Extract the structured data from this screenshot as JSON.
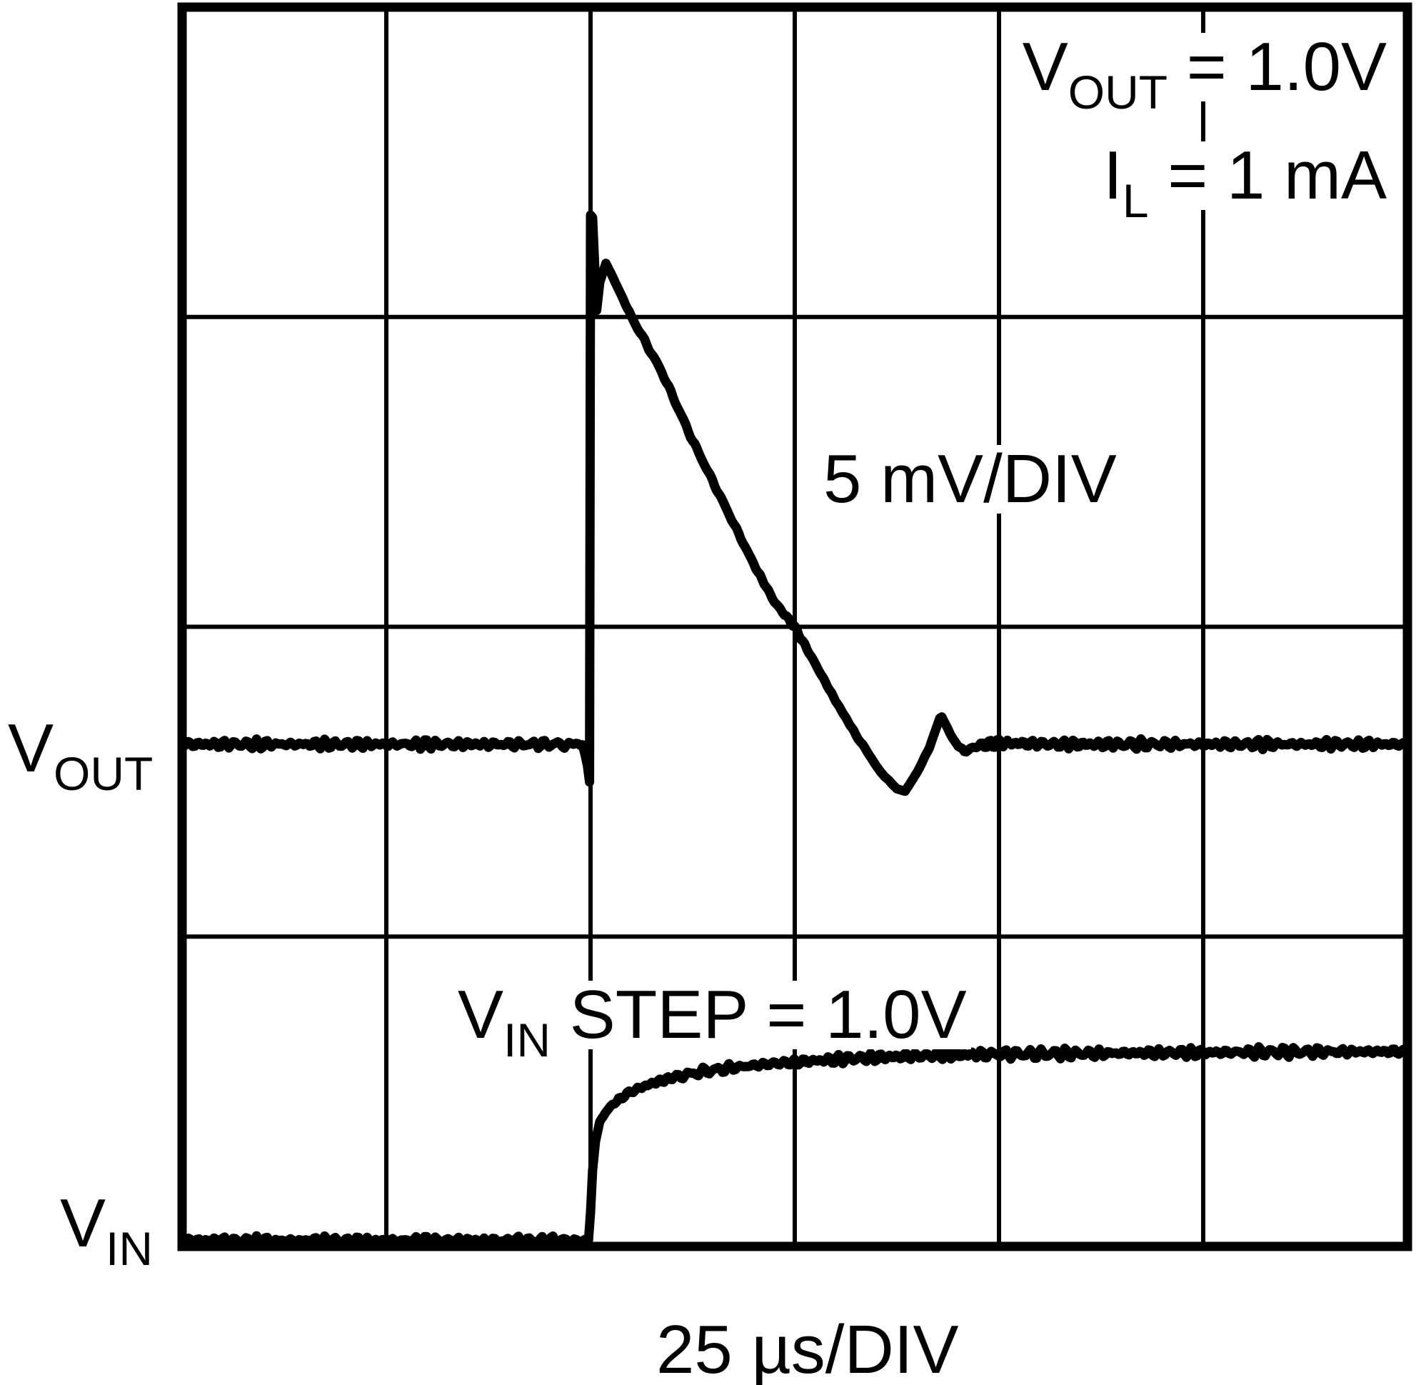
{
  "chart_data": {
    "type": "line",
    "title": "",
    "x_axis": {
      "label": "25 µs/DIV",
      "divisions": 6,
      "per_division": "25 µs",
      "tick_labels": []
    },
    "y_axis": {
      "divisions": 4,
      "vout_scale_per_division": "5 mV",
      "tick_labels": []
    },
    "grid": "on",
    "series": [
      {
        "name": "VOUT",
        "units": "mV",
        "div_per_unit": 0.2,
        "baseline_div": 2.379,
        "description": "Output voltage transient: flat baseline, sharp positive spike of ~8.5 mV at t = 2 div, linear recovery over ~1.5 div, small undershoot of ~-0.8 mV, then settles back to baseline",
        "anchors": [
          [
            0.0,
            0,
            0.09
          ],
          [
            0.5,
            0,
            0.09
          ],
          [
            1.0,
            0,
            0.09
          ],
          [
            1.5,
            0,
            0.09
          ],
          [
            1.85,
            0,
            0.09
          ],
          [
            1.96,
            0,
            0.05
          ],
          [
            1.985,
            -0.35,
            0
          ],
          [
            1.995,
            -0.61,
            0
          ],
          [
            2.0,
            8.54,
            0
          ],
          [
            2.01,
            8.5,
            0
          ],
          [
            2.03,
            7.0,
            0
          ],
          [
            2.045,
            7.45,
            0
          ],
          [
            2.075,
            7.76,
            0
          ],
          [
            2.1,
            7.6,
            0
          ],
          [
            2.2,
            6.9,
            0.03
          ],
          [
            2.35,
            6.0,
            0.03
          ],
          [
            2.5,
            4.9,
            0.03
          ],
          [
            2.65,
            3.9,
            0.03
          ],
          [
            2.8,
            2.9,
            0.03
          ],
          [
            2.9,
            2.3,
            0.03
          ],
          [
            3.0,
            1.89,
            0.03
          ],
          [
            3.1,
            1.3,
            0.03
          ],
          [
            3.2,
            0.7,
            0.02
          ],
          [
            3.3,
            0.15,
            0.02
          ],
          [
            3.42,
            -0.45,
            0.01
          ],
          [
            3.5,
            -0.72,
            0
          ],
          [
            3.54,
            -0.76,
            0
          ],
          [
            3.6,
            -0.45,
            0.01
          ],
          [
            3.66,
            -0.05,
            0.01
          ],
          [
            3.71,
            0.42,
            0
          ],
          [
            3.72,
            0.44,
            0
          ],
          [
            3.78,
            0.05,
            0.02
          ],
          [
            3.83,
            -0.12,
            0.03
          ],
          [
            3.9,
            -0.02,
            0.06
          ],
          [
            4.0,
            0.02,
            0.09
          ],
          [
            4.3,
            0,
            0.09
          ],
          [
            4.6,
            0,
            0.09
          ],
          [
            5.0,
            0,
            0.09
          ],
          [
            5.5,
            0,
            0.09
          ],
          [
            6.0,
            0,
            0.09
          ]
        ]
      },
      {
        "name": "VIN",
        "units": "V",
        "div_per_unit": 0.608,
        "baseline_div": 3.981,
        "description": "Input voltage 1.0 V step at t = 2 div with RC-like rounded rise settling near 1.0 V",
        "anchors": [
          [
            0.0,
            0,
            0.027
          ],
          [
            0.5,
            0,
            0.027
          ],
          [
            1.0,
            0,
            0.027
          ],
          [
            1.5,
            0,
            0.027
          ],
          [
            1.9,
            0,
            0.027
          ],
          [
            1.97,
            0,
            0.015
          ],
          [
            1.99,
            0.0,
            0
          ],
          [
            2.0,
            0.15,
            0
          ],
          [
            2.01,
            0.373,
            0
          ],
          [
            2.024,
            0.525,
            0
          ],
          [
            2.045,
            0.631,
            0
          ],
          [
            2.073,
            0.677,
            0.004
          ],
          [
            2.108,
            0.722,
            0.008
          ],
          [
            2.157,
            0.764,
            0.012
          ],
          [
            2.22,
            0.802,
            0.015
          ],
          [
            2.31,
            0.837,
            0.019
          ],
          [
            2.41,
            0.867,
            0.023
          ],
          [
            2.55,
            0.897,
            0.027
          ],
          [
            2.71,
            0.92,
            0.027
          ],
          [
            2.885,
            0.939,
            0.027
          ],
          [
            3.09,
            0.954,
            0.03
          ],
          [
            3.34,
            0.97,
            0.03
          ],
          [
            3.62,
            0.981,
            0.03
          ],
          [
            3.93,
            0.989,
            0.03
          ],
          [
            4.28,
            0.992,
            0.03
          ],
          [
            4.7,
            0.996,
            0.03
          ],
          [
            5.23,
            1.0,
            0.03
          ],
          [
            6.0,
            1.004,
            0.03
          ]
        ]
      }
    ],
    "annotations": {
      "conditions": [
        {
          "pre": "V",
          "sub": "OUT",
          "post": " = 1.0V"
        },
        {
          "pre": "I",
          "sub": "L",
          "post": " = 1 mA"
        }
      ],
      "vout_scale": "5 mV/DIV",
      "vin_step": {
        "pre": "V",
        "sub": "IN",
        "post": " STEP = 1.0V"
      },
      "vout_trace_label": {
        "pre": "V",
        "sub": "OUT"
      },
      "vin_trace_label": {
        "pre": "V",
        "sub": "IN"
      },
      "time_scale": "25 µs/DIV"
    }
  },
  "colors": {
    "background": "#ffffff",
    "grid": "#000000",
    "trace": "#000000",
    "text": "#000000"
  }
}
